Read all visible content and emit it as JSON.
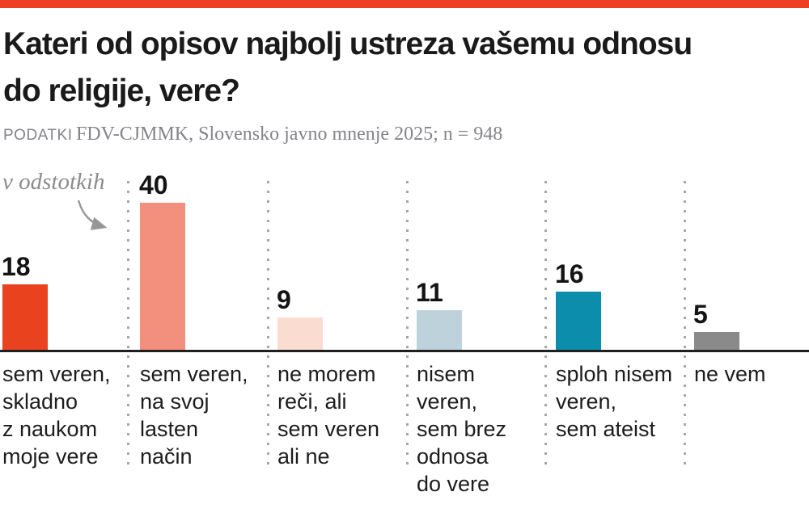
{
  "header": {
    "title_line1": "Kateri od opisov najbolj ustreza vašemu odnosu",
    "title_line2": "do religije, vere?",
    "source_label": "podatki",
    "source_text": "FDV-CJMMK, Slovensko javno mnenje 2025; n = 948"
  },
  "accent_color": "#ee4123",
  "chart_data": {
    "type": "bar",
    "title": "Kateri od opisov najbolj ustreza vašemu odnosu do religije, vere?",
    "subtitle": "PODATKI FDV-CJMMK, Slovensko javno mnenje 2025; n = 948",
    "unit_note": "v odstotkih",
    "categories": [
      "sem veren,\nskladno\nz naukom\nmoje vere",
      "sem veren,\nna svoj\nlasten\nnačin",
      "ne morem\nreči, ali\nsem veren\nali ne",
      "nisem veren,\nsem brez\nodnosa\ndo vere",
      "sploh nisem\nveren,\nsem ateist",
      "ne vem"
    ],
    "values": [
      18,
      40,
      9,
      11,
      16,
      5
    ],
    "bar_colors": [
      "#e8421e",
      "#f2907d",
      "#fadcd0",
      "#bdd2da",
      "#0b8dab",
      "#8a8a8a"
    ],
    "xlabel": "",
    "ylabel": "v odstotkih",
    "ylim": [
      0,
      43
    ],
    "legend": "none",
    "grid": "dotted vertical separators between categories",
    "value_labels": "above bars, left-aligned"
  }
}
